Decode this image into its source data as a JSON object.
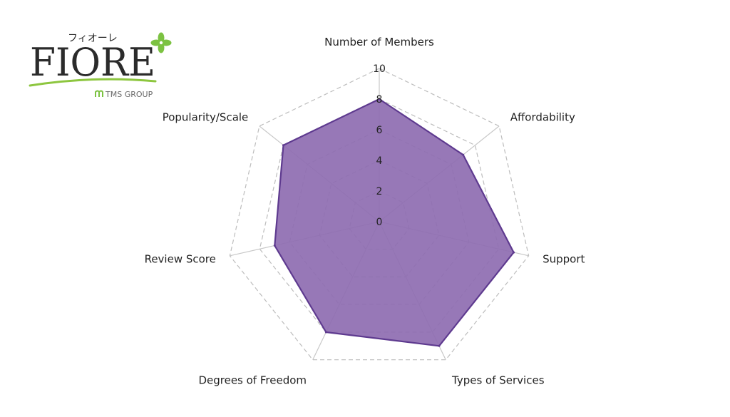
{
  "logo": {
    "kana": "フィオーレ",
    "wordmark": "FIORE",
    "group": "TMS GROUP",
    "icon": "four-leaf-clover-icon",
    "group_icon": "tms-m-icon",
    "colors": {
      "wordmark": "#2b2b2b",
      "leaf": "#7cc242",
      "swoosh": "#8dc63f",
      "group_text": "#6a6a6a"
    }
  },
  "chart_data": {
    "type": "radar",
    "axes": [
      "Number of Members",
      "Affordability",
      "Support",
      "Types of Services",
      "Degrees of Freedom",
      "Review Score",
      "Popularity/Scale"
    ],
    "values": [
      8,
      7,
      9,
      9,
      8,
      7,
      8
    ],
    "rlim": [
      0,
      10
    ],
    "ticks": [
      "0",
      "2",
      "4",
      "6",
      "8",
      "10"
    ],
    "grid": true,
    "legend": "none",
    "colors": {
      "fill": "#8e6db1",
      "stroke": "#5e3a8f",
      "grid": "#bdbdbd",
      "spoke": "#c8c8c8"
    }
  }
}
